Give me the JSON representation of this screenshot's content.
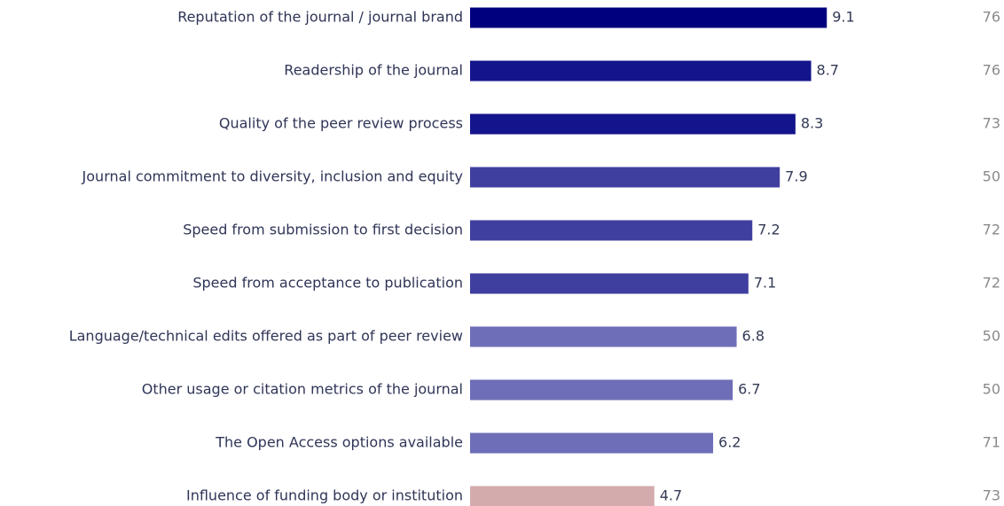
{
  "chart_data": {
    "type": "bar",
    "orientation": "horizontal",
    "categories": [
      "Reputation of the journal / journal brand",
      "Readership of the journal",
      "Quality of the peer review process",
      "Journal commitment to diversity, inclusion and equity",
      "Speed from submission to first decision",
      "Speed from acceptance to publication",
      "Language/technical edits offered as part of peer review",
      "Other usage or citation metrics of the journal",
      "The Open Access options available",
      "Influence of funding body or institution"
    ],
    "values": [
      9.1,
      8.7,
      8.3,
      7.9,
      7.2,
      7.1,
      6.8,
      6.7,
      6.2,
      4.7
    ],
    "colors": [
      "#00007f",
      "#14148c",
      "#14148c",
      "#3f3fa0",
      "#3f3fa0",
      "#3f3fa0",
      "#6e6eb8",
      "#6e6eb8",
      "#6e6eb8",
      "#d4abad"
    ],
    "counts": [
      76,
      76,
      73,
      50,
      72,
      72,
      50,
      50,
      71,
      73
    ]
  }
}
